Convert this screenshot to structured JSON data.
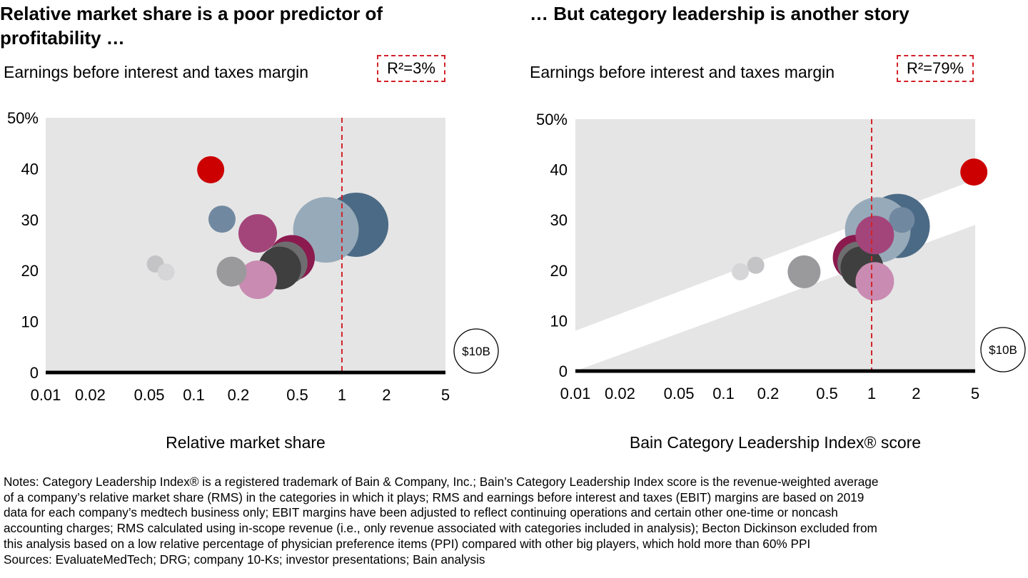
{
  "notes": {
    "lines": [
      "Notes: Category Leadership Index® is a registered trademark of Bain & Company, Inc.; Bain’s Category Leadership Index score is the revenue-weighted average",
      "of a company’s relative market share (RMS) in the categories in which it plays; RMS and earnings before interest and taxes (EBIT) margins are based on 2019",
      "data for each company’s medtech business only; EBIT margins have been adjusted to reflect continuing operations and certain other one-time or noncash",
      "accounting charges; RMS calculated using in-scope revenue (i.e., only revenue associated with categories included in analysis); Becton Dickinson excluded from",
      "this analysis based on a low relative percentage of physician preference items (PPI) compared with other big players, which hold more than 60% PPI"
    ],
    "sources": "Sources: EvaluateMedTech; DRG; company 10-Ks; investor presentations; Bain analysis"
  },
  "colors": {
    "plot_bg": "#e5e5e6",
    "red": "#cc0000",
    "reference_line": "#d2232a",
    "dark_blue": "#4b6a85",
    "light_blue": "#97aab9",
    "steel_blue": "#7189a0",
    "burgundy": "#8b1a4f",
    "mauve": "#a3457a",
    "pink": "#c98bb1",
    "dark_gray": "#3f3f40",
    "mid_gray": "#6e6e70",
    "gray": "#9a9a9c",
    "light_gray": "#c4c4c6",
    "lighter_gray": "#d6d6d8"
  },
  "chart_data": [
    {
      "type": "bubble",
      "title": "Relative market share is a poor predictor of profitability …",
      "ylabel": "Earnings before interest and taxes margin",
      "xlabel": "Relative market share",
      "annotation": "R²=3%",
      "size_legend": "$10B",
      "x_scale": "log",
      "xlim": [
        0.01,
        5
      ],
      "ylim": [
        0,
        50
      ],
      "x_ticks": [
        "0.01",
        "0.02",
        "0.05",
        "0.1",
        "0.2",
        "0.5",
        "1",
        "2",
        "5"
      ],
      "y_ticks": [
        "0",
        "10",
        "20",
        "30",
        "40",
        "50%"
      ],
      "reference_x": 1,
      "points": [
        {
          "x": 1.25,
          "y": 29,
          "r": 45,
          "color": "dark_blue"
        },
        {
          "x": 0.78,
          "y": 28,
          "r": 46,
          "color": "light_blue"
        },
        {
          "x": 0.46,
          "y": 22.5,
          "r": 32,
          "color": "burgundy"
        },
        {
          "x": 0.42,
          "y": 21.5,
          "r": 30,
          "color": "mid_gray"
        },
        {
          "x": 0.38,
          "y": 20.5,
          "r": 30,
          "color": "dark_gray"
        },
        {
          "x": 0.27,
          "y": 27.3,
          "r": 27,
          "color": "mauve"
        },
        {
          "x": 0.27,
          "y": 18.2,
          "r": 27,
          "color": "pink"
        },
        {
          "x": 0.18,
          "y": 19.8,
          "r": 21,
          "color": "gray"
        },
        {
          "x": 0.155,
          "y": 30.1,
          "r": 19,
          "color": "steel_blue"
        },
        {
          "x": 0.13,
          "y": 39.8,
          "r": 19,
          "color": "red"
        },
        {
          "x": 0.055,
          "y": 21.3,
          "r": 12,
          "color": "light_gray"
        },
        {
          "x": 0.065,
          "y": 19.7,
          "r": 12,
          "color": "lighter_gray"
        }
      ]
    },
    {
      "type": "bubble",
      "title": "… But category leadership is another story",
      "ylabel": "Earnings before interest and taxes margin",
      "xlabel": "Bain Category Leadership Index® score",
      "annotation": "R²=79%",
      "size_legend": "$10B",
      "x_scale": "log",
      "xlim": [
        0.01,
        5
      ],
      "ylim": [
        0,
        50
      ],
      "x_ticks": [
        "0.01",
        "0.02",
        "0.05",
        "0.1",
        "0.2",
        "0.5",
        "1",
        "2",
        "5"
      ],
      "y_ticks": [
        "0",
        "10",
        "20",
        "30",
        "40",
        "50%"
      ],
      "reference_x": 1,
      "trend_band": {
        "lower": [
          [
            0.01,
            0
          ],
          [
            5,
            29
          ]
        ],
        "upper": [
          [
            0.01,
            8
          ],
          [
            5,
            38
          ]
        ]
      },
      "points": [
        {
          "x": 1.5,
          "y": 28.8,
          "r": 45,
          "color": "dark_blue"
        },
        {
          "x": 1.1,
          "y": 28,
          "r": 46,
          "color": "light_blue"
        },
        {
          "x": 1.6,
          "y": 30,
          "r": 18,
          "color": "steel_blue"
        },
        {
          "x": 0.78,
          "y": 22.5,
          "r": 32,
          "color": "burgundy"
        },
        {
          "x": 0.82,
          "y": 21.5,
          "r": 30,
          "color": "mid_gray"
        },
        {
          "x": 0.86,
          "y": 20.5,
          "r": 30,
          "color": "dark_gray"
        },
        {
          "x": 1.05,
          "y": 27,
          "r": 27,
          "color": "mauve"
        },
        {
          "x": 1.05,
          "y": 17.8,
          "r": 27,
          "color": "pink"
        },
        {
          "x": 0.35,
          "y": 19.7,
          "r": 23,
          "color": "gray"
        },
        {
          "x": 4.9,
          "y": 39.5,
          "r": 19,
          "color": "red"
        },
        {
          "x": 0.165,
          "y": 21,
          "r": 12,
          "color": "light_gray"
        },
        {
          "x": 0.13,
          "y": 19.7,
          "r": 12,
          "color": "lighter_gray"
        }
      ]
    }
  ]
}
